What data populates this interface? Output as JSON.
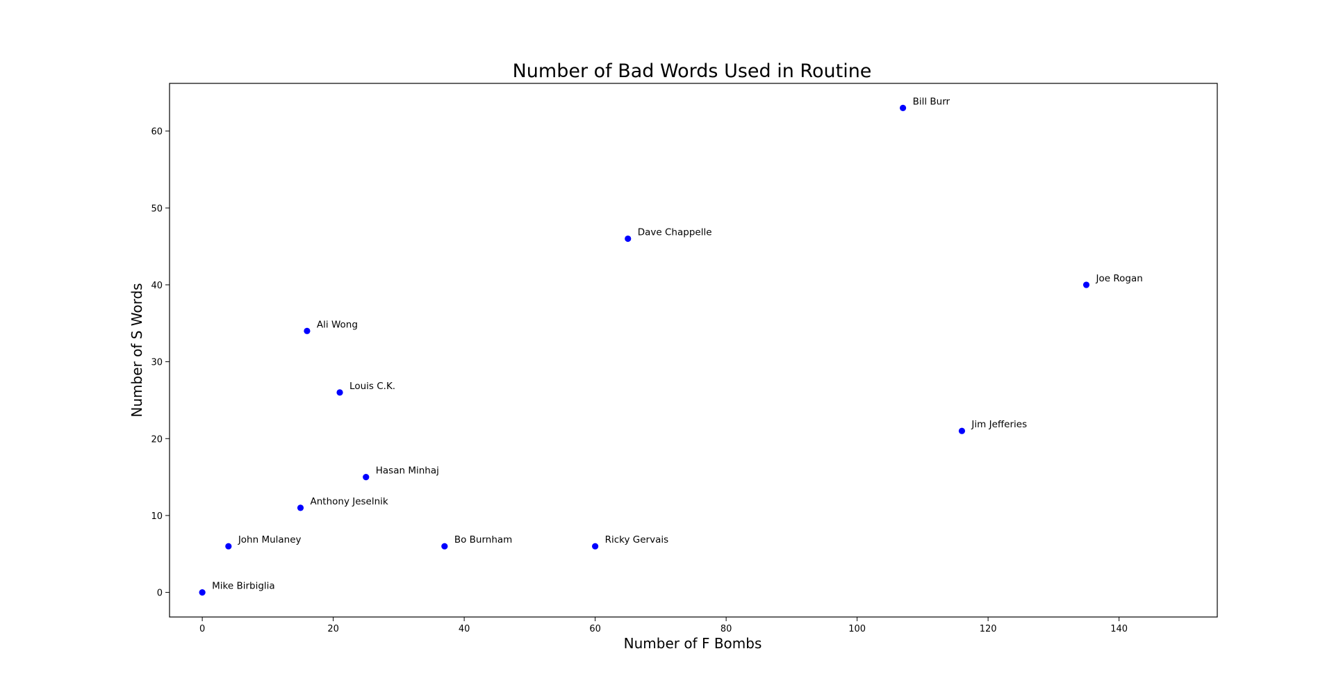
{
  "chart_data": {
    "type": "scatter",
    "title": "Number of Bad Words Used in Routine",
    "xlabel": "Number of F Bombs",
    "ylabel": "Number of S Words",
    "xlim": [
      -5,
      155
    ],
    "ylim": [
      -3.2,
      66.2
    ],
    "xticks": [
      0,
      20,
      40,
      60,
      80,
      100,
      120,
      140
    ],
    "yticks": [
      0,
      10,
      20,
      30,
      40,
      50,
      60
    ],
    "grid": false,
    "marker_color": "#0000ff",
    "points": [
      {
        "label": "Bill Burr",
        "x": 107,
        "y": 63
      },
      {
        "label": "Dave Chappelle",
        "x": 65,
        "y": 46
      },
      {
        "label": "Joe Rogan",
        "x": 135,
        "y": 40
      },
      {
        "label": "Ali Wong",
        "x": 16,
        "y": 34
      },
      {
        "label": "Louis C.K.",
        "x": 21,
        "y": 26
      },
      {
        "label": "Jim Jefferies",
        "x": 116,
        "y": 21
      },
      {
        "label": "Hasan Minhaj",
        "x": 25,
        "y": 15
      },
      {
        "label": "Anthony Jeselnik",
        "x": 15,
        "y": 11
      },
      {
        "label": "John Mulaney",
        "x": 4,
        "y": 6
      },
      {
        "label": "Bo Burnham",
        "x": 37,
        "y": 6
      },
      {
        "label": "Ricky Gervais",
        "x": 60,
        "y": 6
      },
      {
        "label": "Mike Birbiglia",
        "x": 0,
        "y": 0
      }
    ]
  }
}
